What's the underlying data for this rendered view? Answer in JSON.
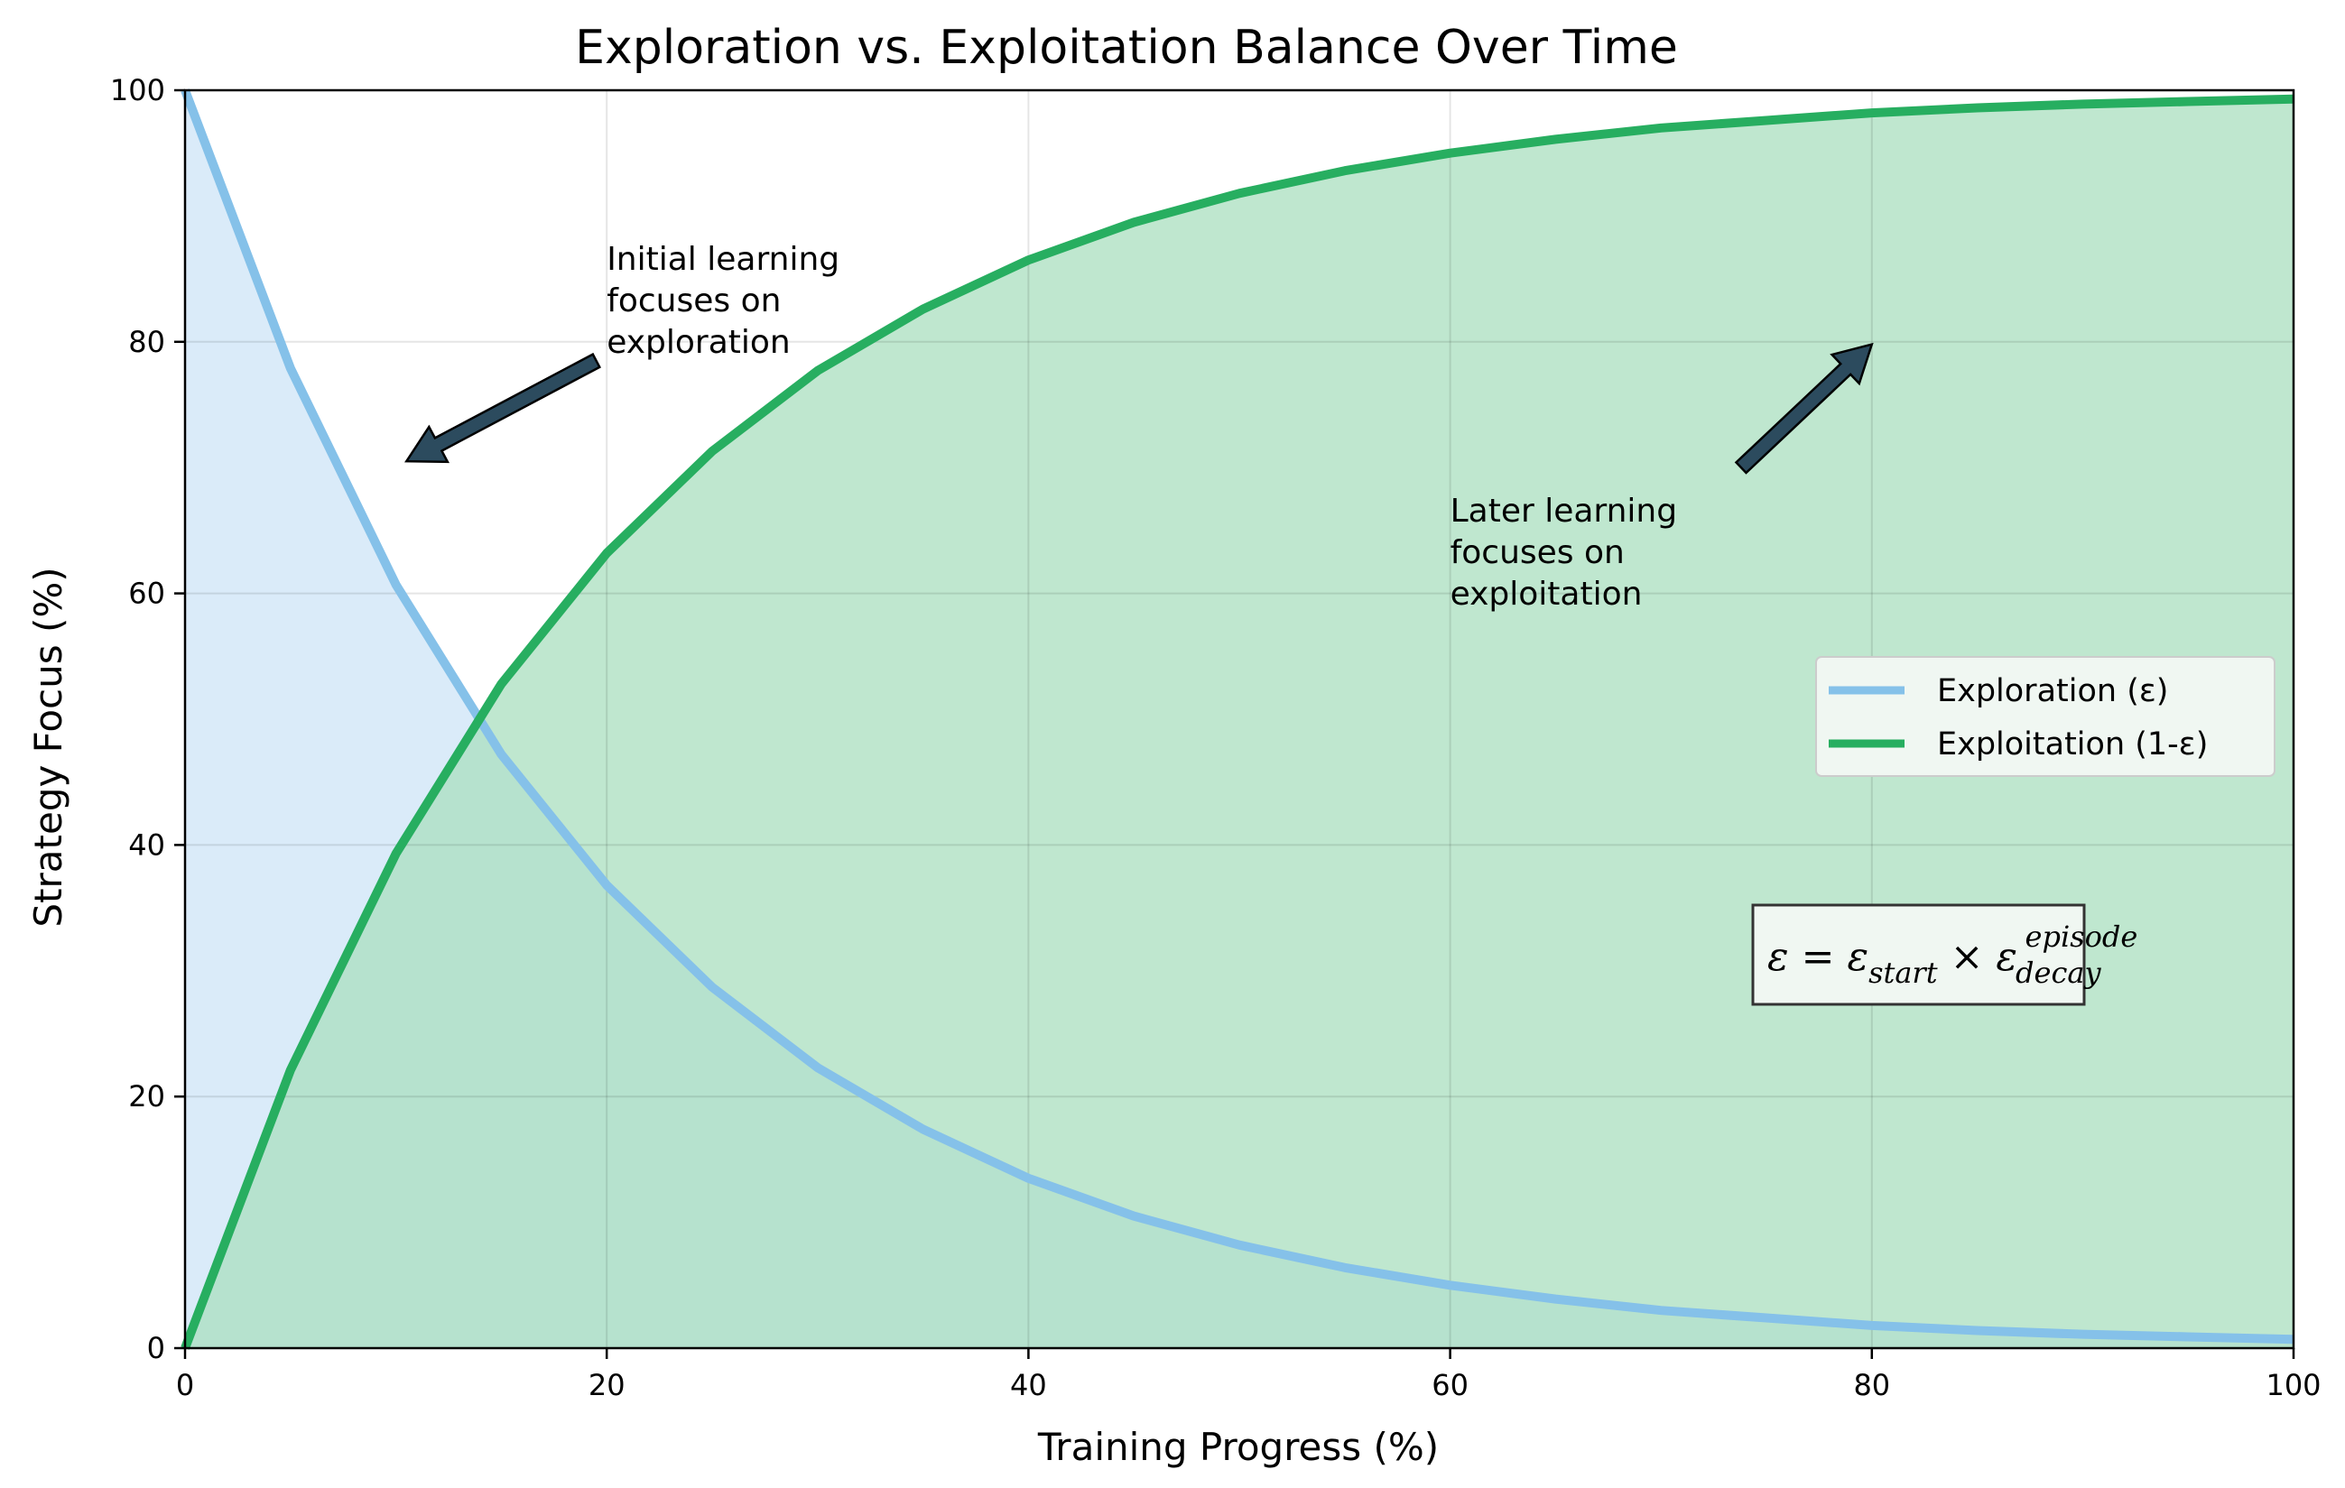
{
  "chart_data": {
    "type": "line",
    "title": "Exploration vs. Exploitation Balance Over Time",
    "xlabel": "Training Progress (%)",
    "ylabel": "Strategy Focus (%)",
    "xlim": [
      0,
      100
    ],
    "ylim": [
      0,
      100
    ],
    "xticks": [
      0,
      20,
      40,
      60,
      80,
      100
    ],
    "yticks": [
      0,
      20,
      40,
      60,
      80,
      100
    ],
    "grid": true,
    "legend_position": "center-right",
    "x": [
      0,
      5,
      10,
      15,
      20,
      25,
      30,
      35,
      40,
      45,
      50,
      55,
      60,
      65,
      70,
      75,
      80,
      85,
      90,
      95,
      100
    ],
    "series": [
      {
        "name": "Exploration (ε)",
        "color": "#85c1e9",
        "fill": "#d6e9f8",
        "values": [
          100,
          77.9,
          60.7,
          47.2,
          36.8,
          28.7,
          22.3,
          17.4,
          13.5,
          10.5,
          8.2,
          6.4,
          5.0,
          3.9,
          3.0,
          2.4,
          1.8,
          1.4,
          1.1,
          0.9,
          0.7
        ]
      },
      {
        "name": "Exploitation (1-ε)",
        "color": "#27ae60",
        "fill": "#a9dfbf",
        "values": [
          0,
          22.1,
          39.3,
          52.8,
          63.2,
          71.3,
          77.7,
          82.6,
          86.5,
          89.5,
          91.8,
          93.6,
          95.0,
          96.1,
          97.0,
          97.6,
          98.2,
          98.6,
          98.9,
          99.1,
          99.3
        ]
      }
    ],
    "annotations": [
      {
        "lines": [
          "Initial learning",
          "focuses on",
          "exploration"
        ],
        "text_x": 20,
        "text_y": 85,
        "arrow_from": [
          19.5,
          78.5
        ],
        "arrow_to": [
          10.5,
          70.5
        ]
      },
      {
        "lines": [
          "Later learning",
          "focuses on",
          "exploitation"
        ],
        "text_x": 60,
        "text_y": 65,
        "arrow_from": [
          73.8,
          70
        ],
        "arrow_to": [
          80,
          79.8
        ]
      }
    ],
    "formula": {
      "lhs": "ε = ε",
      "sub1": "start",
      "op": " × ε",
      "sub2": "decay",
      "sup2": "episode"
    }
  }
}
